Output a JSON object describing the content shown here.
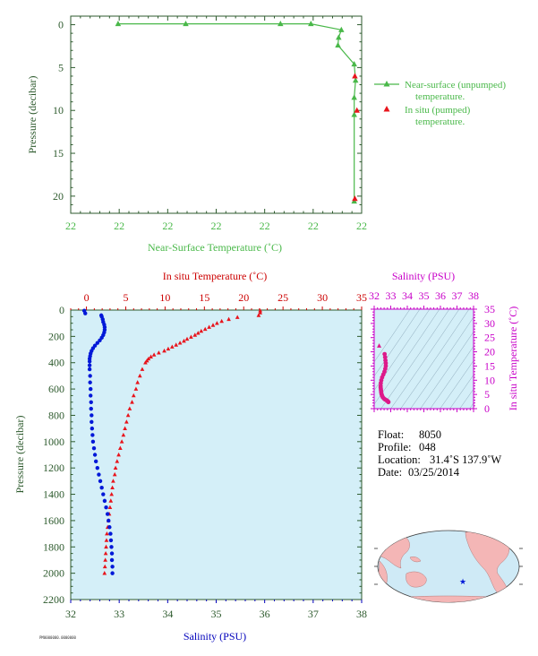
{
  "chart_data": [
    {
      "type": "line",
      "panel": "near-surface temperature profile",
      "xlabel": "Near-Surface Temperature (˚C)",
      "ylabel": "Pressure (decibar)",
      "xticklabels": [
        "22",
        "22",
        "22",
        "22",
        "22",
        "22",
        "22"
      ],
      "ylim": [
        22,
        -1
      ],
      "yticks": [
        0,
        5,
        10,
        15,
        20
      ],
      "legend_position": "right",
      "series": [
        {
          "name": "Near-surface (unpumped) temperature.",
          "color": "#49b849",
          "marker": "triangle",
          "points": [
            {
              "x": 21.87,
              "y": -0.1
            },
            {
              "x": 21.97,
              "y": -0.1
            },
            {
              "x": 22.11,
              "y": -0.1
            },
            {
              "x": 22.155,
              "y": -0.1
            },
            {
              "x": 22.2,
              "y": 0.6
            },
            {
              "x": 22.196,
              "y": 1.5
            },
            {
              "x": 22.195,
              "y": 2.4
            },
            {
              "x": 22.219,
              "y": 4.6
            },
            {
              "x": 22.221,
              "y": 6.5
            },
            {
              "x": 22.219,
              "y": 8.5
            },
            {
              "x": 22.219,
              "y": 10.5
            },
            {
              "x": 22.219,
              "y": 20.6
            }
          ]
        },
        {
          "name": "In situ (pumped) temperature.",
          "color": "#e8141c",
          "marker": "triangle",
          "points": [
            {
              "x": 22.22,
              "y": 6.0
            },
            {
              "x": 22.223,
              "y": 10.0
            },
            {
              "x": 22.22,
              "y": 20.3
            }
          ]
        }
      ]
    },
    {
      "type": "scatter",
      "panel": "deep profile",
      "ylabel": "Pressure (decibar)",
      "top_axis": {
        "label": "In situ Temperature (˚C)",
        "ticks": [
          0,
          5,
          10,
          15,
          20,
          25,
          30,
          35
        ],
        "range": [
          -2,
          35
        ],
        "color": "#cc0000"
      },
      "bottom_axis": {
        "label": "Salinity (PSU)",
        "ticks": [
          32,
          33,
          34,
          35,
          36,
          37,
          38
        ],
        "range": [
          32,
          38
        ],
        "color": "#0000bb"
      },
      "y_ticks": [
        0,
        200,
        400,
        600,
        800,
        1000,
        1200,
        1400,
        1600,
        1800,
        2000,
        2200
      ],
      "ylim": [
        2200,
        0
      ],
      "series": [
        {
          "name": "Temperature",
          "color": "#e8141c",
          "marker": "triangle",
          "p": [
            5,
            20,
            40,
            55,
            70,
            85,
            100,
            115,
            130,
            145,
            160,
            175,
            190,
            205,
            220,
            235,
            250,
            265,
            280,
            295,
            310,
            325,
            340,
            355,
            370,
            385,
            400,
            450,
            500,
            550,
            600,
            650,
            700,
            750,
            800,
            850,
            900,
            950,
            1000,
            1050,
            1100,
            1150,
            1200,
            1250,
            1300,
            1350,
            1400,
            1450,
            1500,
            1550,
            1600,
            1650,
            1700,
            1750,
            1800,
            1850,
            1900,
            1950,
            2000
          ],
          "t": [
            22.1,
            22.1,
            21.9,
            19.2,
            18.1,
            17.2,
            16.6,
            16.1,
            15.6,
            15.1,
            14.6,
            14.2,
            13.8,
            13.3,
            12.8,
            12.4,
            11.9,
            11.4,
            10.9,
            10.4,
            9.9,
            9.2,
            8.6,
            8.2,
            7.9,
            7.7,
            7.5,
            7.1,
            6.8,
            6.5,
            6.3,
            6.0,
            5.8,
            5.5,
            5.3,
            5.1,
            4.9,
            4.7,
            4.5,
            4.3,
            4.1,
            3.9,
            3.7,
            3.6,
            3.4,
            3.3,
            3.2,
            3.1,
            3.0,
            2.9,
            2.8,
            2.7,
            2.6,
            2.55,
            2.5,
            2.45,
            2.4,
            2.35,
            2.3
          ]
        },
        {
          "name": "Salinity",
          "color": "#0018d8",
          "marker": "circle",
          "p": [
            5,
            25,
            40,
            50,
            70,
            90,
            110,
            130,
            150,
            170,
            190,
            210,
            230,
            250,
            270,
            290,
            310,
            330,
            350,
            370,
            390,
            420,
            450,
            500,
            550,
            600,
            650,
            700,
            750,
            800,
            850,
            900,
            950,
            1000,
            1050,
            1100,
            1150,
            1200,
            1250,
            1300,
            1350,
            1400,
            1450,
            1500,
            1550,
            1600,
            1650,
            1700,
            1750,
            1800,
            1850,
            1900,
            1950,
            2000
          ],
          "s": [
            32.28,
            32.3,
            32.63,
            32.64,
            32.66,
            32.67,
            32.69,
            32.7,
            32.7,
            32.69,
            32.67,
            32.64,
            32.6,
            32.55,
            32.5,
            32.46,
            32.43,
            32.41,
            32.4,
            32.39,
            32.39,
            32.39,
            32.39,
            32.4,
            32.4,
            32.41,
            32.41,
            32.42,
            32.42,
            32.43,
            32.43,
            32.44,
            32.45,
            32.46,
            32.48,
            32.5,
            32.52,
            32.55,
            32.58,
            32.61,
            32.64,
            32.67,
            32.7,
            32.73,
            32.76,
            32.78,
            32.8,
            32.82,
            32.83,
            32.84,
            32.85,
            32.85,
            32.86,
            32.86
          ]
        }
      ]
    },
    {
      "type": "scatter",
      "panel": "T-S diagram",
      "xlabel": "Salinity (PSU)",
      "ylabel": "In situ Temperature (˚C)",
      "xticks": [
        32,
        33,
        34,
        35,
        36,
        37,
        38
      ],
      "yticks": [
        0,
        5,
        10,
        15,
        20,
        25,
        30,
        35
      ],
      "color": "#dd1a8a",
      "points": [
        {
          "s": 32.3,
          "t": 22.1
        },
        {
          "s": 32.63,
          "t": 19.2
        },
        {
          "s": 32.66,
          "t": 18.1
        },
        {
          "s": 32.68,
          "t": 17.0
        },
        {
          "s": 32.7,
          "t": 16.0
        },
        {
          "s": 32.7,
          "t": 15.0
        },
        {
          "s": 32.67,
          "t": 14.0
        },
        {
          "s": 32.62,
          "t": 13.0
        },
        {
          "s": 32.55,
          "t": 12.0
        },
        {
          "s": 32.48,
          "t": 11.0
        },
        {
          "s": 32.43,
          "t": 10.0
        },
        {
          "s": 32.4,
          "t": 9.0
        },
        {
          "s": 32.39,
          "t": 8.0
        },
        {
          "s": 32.39,
          "t": 7.5
        },
        {
          "s": 32.4,
          "t": 7.0
        },
        {
          "s": 32.41,
          "t": 6.5
        },
        {
          "s": 32.42,
          "t": 6.0
        },
        {
          "s": 32.43,
          "t": 5.5
        },
        {
          "s": 32.45,
          "t": 5.0
        },
        {
          "s": 32.48,
          "t": 4.5
        },
        {
          "s": 32.52,
          "t": 4.0
        },
        {
          "s": 32.58,
          "t": 3.6
        },
        {
          "s": 32.64,
          "t": 3.3
        },
        {
          "s": 32.7,
          "t": 3.1
        },
        {
          "s": 32.76,
          "t": 2.9
        },
        {
          "s": 32.8,
          "t": 2.7
        },
        {
          "s": 32.83,
          "t": 2.55
        },
        {
          "s": 32.85,
          "t": 2.4
        },
        {
          "s": 32.86,
          "t": 2.3
        }
      ]
    }
  ],
  "float_info": {
    "float_label": "Float:",
    "float_value": "8050",
    "profile_label": "Profile:",
    "profile_value": "048",
    "location_label": "Location:",
    "location_value": "31.4˚S  137.9˚W",
    "date_label": "Date:",
    "date_value": "03/25/2014"
  },
  "footer_code": "PM0000000.0000000",
  "colors": {
    "green": "#49b849",
    "red": "#cc0000",
    "red_marker": "#e8141c",
    "blue": "#0000bb",
    "magenta": "#c800c8",
    "pink": "#dd1a8a",
    "axis_dark": "#2d5a2d",
    "plot_fill": "#d4eff8",
    "land": "#f4b6b6",
    "ocean": "#cfeaf6"
  }
}
